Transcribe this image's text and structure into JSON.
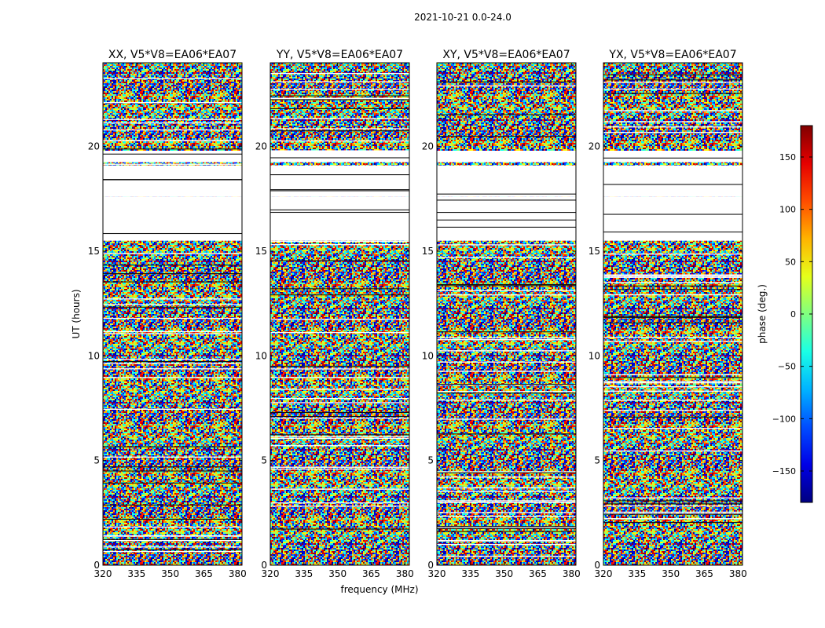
{
  "figure_title": "2021-10-21 0.0-24.0",
  "chart_data": {
    "type": "heatmap",
    "xlabel": "frequency (MHz)",
    "ylabel": "UT (hours)",
    "xlim": [
      320,
      382
    ],
    "ylim": [
      0,
      24
    ],
    "xticks": [
      320,
      335,
      350,
      365,
      380
    ],
    "yticks": [
      0,
      5,
      10,
      15,
      20
    ],
    "colorbar": {
      "label": "phase (deg.)",
      "range": [
        -180,
        180
      ],
      "ticks": [
        -150,
        -100,
        -50,
        0,
        50,
        100,
        150
      ],
      "tick_labels": [
        "−150",
        "−100",
        "−50",
        "0",
        "50",
        "100",
        "150"
      ],
      "colormap": "jet"
    },
    "panels": [
      {
        "title": "XX, V5*V8=EA06*EA07"
      },
      {
        "title": "YY, V5*V8=EA06*EA07"
      },
      {
        "title": "XY, V5*V8=EA06*EA07"
      },
      {
        "title": "YX, V5*V8=EA06*EA07"
      }
    ],
    "no_data_ranges_ut": [
      [
        17.6,
        19.1
      ],
      [
        15.5,
        17.6
      ],
      [
        19.25,
        19.8
      ]
    ]
  }
}
